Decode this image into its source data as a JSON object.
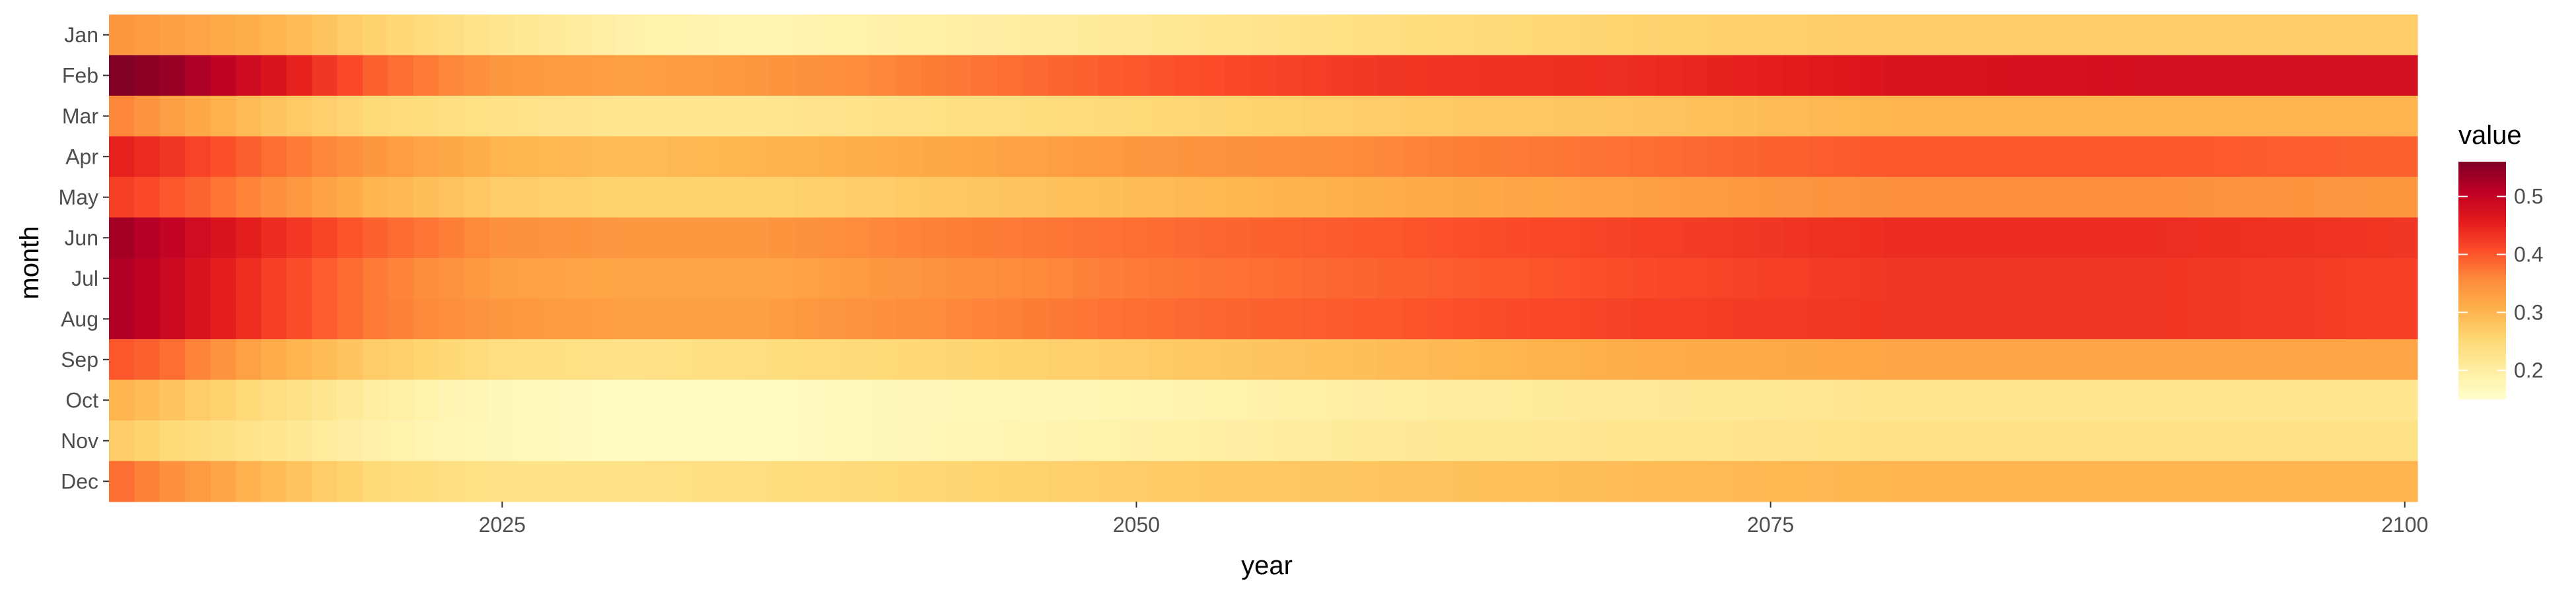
{
  "chart_data": {
    "type": "heatmap",
    "title": "",
    "xlabel": "year",
    "ylabel": "month",
    "x_start": 2010,
    "x_end": 2100,
    "xlim": [
      2009.5,
      2100.5
    ],
    "x_ticks": [
      2025,
      2050,
      2075,
      2100
    ],
    "x_tick_labels": [
      "2025",
      "2050",
      "2075",
      "2100"
    ],
    "months": [
      "Jan",
      "Feb",
      "Mar",
      "Apr",
      "May",
      "Jun",
      "Jul",
      "Aug",
      "Sep",
      "Oct",
      "Nov",
      "Dec"
    ],
    "color_scale": {
      "palette": [
        "#ffffcc",
        "#ffeda0",
        "#fed976",
        "#feb24c",
        "#fd8d3c",
        "#fc4e2a",
        "#e31a1c",
        "#bd0026",
        "#800026"
      ],
      "min": 0.15,
      "max": 0.56
    },
    "grid": false,
    "legend": {
      "title": "value",
      "position": "right",
      "ticks": [
        0.2,
        0.3,
        0.4,
        0.5
      ],
      "tick_labels": [
        "0.2",
        "0.3",
        "0.4",
        "0.5"
      ]
    },
    "series": [
      {
        "name": "Jan",
        "anchor_years": [
          2010,
          2012,
          2016,
          2020,
          2025,
          2030,
          2035,
          2040,
          2050,
          2060,
          2070,
          2080,
          2090,
          2100
        ],
        "anchor_values": [
          0.34,
          0.33,
          0.3,
          0.26,
          0.22,
          0.19,
          0.18,
          0.19,
          0.21,
          0.24,
          0.26,
          0.27,
          0.27,
          0.27
        ]
      },
      {
        "name": "Feb",
        "anchor_years": [
          2010,
          2012,
          2016,
          2020,
          2025,
          2030,
          2035,
          2040,
          2050,
          2060,
          2070,
          2080,
          2090,
          2100
        ],
        "anchor_values": [
          0.56,
          0.54,
          0.47,
          0.39,
          0.34,
          0.33,
          0.34,
          0.36,
          0.4,
          0.43,
          0.44,
          0.47,
          0.48,
          0.48
        ]
      },
      {
        "name": "Mar",
        "anchor_years": [
          2010,
          2012,
          2016,
          2020,
          2025,
          2030,
          2035,
          2040,
          2050,
          2060,
          2070,
          2080,
          2090,
          2100
        ],
        "anchor_values": [
          0.36,
          0.33,
          0.28,
          0.25,
          0.23,
          0.22,
          0.22,
          0.23,
          0.25,
          0.27,
          0.28,
          0.3,
          0.3,
          0.3
        ]
      },
      {
        "name": "Apr",
        "anchor_years": [
          2010,
          2012,
          2016,
          2020,
          2025,
          2030,
          2035,
          2040,
          2050,
          2060,
          2070,
          2080,
          2090,
          2100
        ],
        "anchor_values": [
          0.45,
          0.43,
          0.38,
          0.34,
          0.3,
          0.29,
          0.3,
          0.31,
          0.34,
          0.36,
          0.38,
          0.4,
          0.4,
          0.39
        ]
      },
      {
        "name": "May",
        "anchor_years": [
          2010,
          2012,
          2016,
          2020,
          2025,
          2030,
          2035,
          2040,
          2050,
          2060,
          2070,
          2080,
          2090,
          2100
        ],
        "anchor_values": [
          0.42,
          0.4,
          0.35,
          0.3,
          0.27,
          0.26,
          0.26,
          0.27,
          0.29,
          0.31,
          0.33,
          0.35,
          0.35,
          0.34
        ]
      },
      {
        "name": "Jun",
        "anchor_years": [
          2010,
          2012,
          2016,
          2020,
          2025,
          2030,
          2035,
          2040,
          2050,
          2060,
          2070,
          2080,
          2090,
          2100
        ],
        "anchor_values": [
          0.53,
          0.5,
          0.44,
          0.39,
          0.35,
          0.34,
          0.34,
          0.36,
          0.38,
          0.4,
          0.42,
          0.44,
          0.44,
          0.43
        ]
      },
      {
        "name": "Jul",
        "anchor_years": [
          2010,
          2012,
          2016,
          2020,
          2025,
          2030,
          2035,
          2040,
          2050,
          2060,
          2070,
          2080,
          2090,
          2100
        ],
        "anchor_values": [
          0.52,
          0.49,
          0.42,
          0.37,
          0.33,
          0.32,
          0.32,
          0.34,
          0.37,
          0.39,
          0.41,
          0.43,
          0.43,
          0.42
        ]
      },
      {
        "name": "Aug",
        "anchor_years": [
          2010,
          2012,
          2016,
          2020,
          2025,
          2030,
          2035,
          2040,
          2050,
          2060,
          2070,
          2080,
          2090,
          2100
        ],
        "anchor_values": [
          0.52,
          0.49,
          0.42,
          0.37,
          0.34,
          0.33,
          0.33,
          0.35,
          0.38,
          0.4,
          0.42,
          0.43,
          0.43,
          0.42
        ]
      },
      {
        "name": "Sep",
        "anchor_years": [
          2010,
          2012,
          2016,
          2020,
          2025,
          2030,
          2035,
          2040,
          2050,
          2060,
          2070,
          2080,
          2090,
          2100
        ],
        "anchor_values": [
          0.4,
          0.38,
          0.31,
          0.27,
          0.24,
          0.23,
          0.24,
          0.25,
          0.27,
          0.29,
          0.31,
          0.32,
          0.32,
          0.32
        ]
      },
      {
        "name": "Oct",
        "anchor_years": [
          2010,
          2012,
          2016,
          2020,
          2025,
          2030,
          2035,
          2040,
          2050,
          2060,
          2070,
          2080,
          2090,
          2100
        ],
        "anchor_values": [
          0.3,
          0.28,
          0.24,
          0.2,
          0.17,
          0.16,
          0.16,
          0.17,
          0.18,
          0.2,
          0.21,
          0.22,
          0.22,
          0.22
        ]
      },
      {
        "name": "Nov",
        "anchor_years": [
          2010,
          2012,
          2016,
          2020,
          2025,
          2030,
          2035,
          2040,
          2050,
          2060,
          2070,
          2080,
          2090,
          2100
        ],
        "anchor_values": [
          0.27,
          0.25,
          0.22,
          0.19,
          0.17,
          0.16,
          0.16,
          0.17,
          0.19,
          0.21,
          0.22,
          0.23,
          0.23,
          0.23
        ]
      },
      {
        "name": "Dec",
        "anchor_years": [
          2010,
          2012,
          2016,
          2020,
          2025,
          2030,
          2035,
          2040,
          2050,
          2060,
          2070,
          2080,
          2090,
          2100
        ],
        "anchor_values": [
          0.38,
          0.35,
          0.29,
          0.25,
          0.23,
          0.23,
          0.24,
          0.25,
          0.27,
          0.28,
          0.29,
          0.3,
          0.3,
          0.3
        ]
      }
    ]
  }
}
